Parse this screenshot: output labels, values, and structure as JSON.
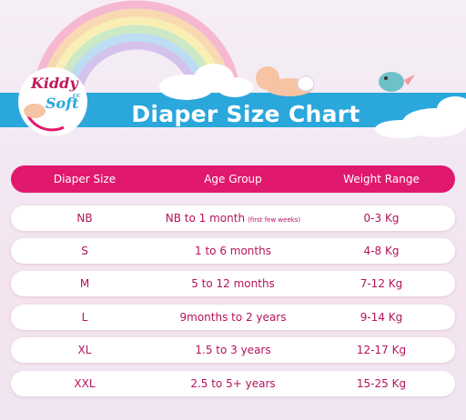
{
  "logo": {
    "brand_top": "Kiddy",
    "brand_bottom": "Soft",
    "mark": "cc"
  },
  "title": "Diaper Size Chart",
  "table": {
    "header": [
      "Diaper Size",
      "Age Group",
      "Weight Range"
    ],
    "rows": [
      {
        "size": "NB",
        "age": "NB to 1 month",
        "age_note": "(first few weeks)",
        "weight": "0-3 Kg"
      },
      {
        "size": "S",
        "age": "1 to 6 months",
        "weight": "4-8 Kg"
      },
      {
        "size": "M",
        "age": "5 to 12 months",
        "weight": "7-12 Kg"
      },
      {
        "size": "L",
        "age": "9months to 2 years",
        "weight": "9-14 Kg"
      },
      {
        "size": "XL",
        "age": "1.5 to 3 years",
        "weight": "12-17 Kg"
      },
      {
        "size": "XXL",
        "age": "2.5 to 5+ years",
        "weight": "15-25 Kg"
      }
    ]
  }
}
